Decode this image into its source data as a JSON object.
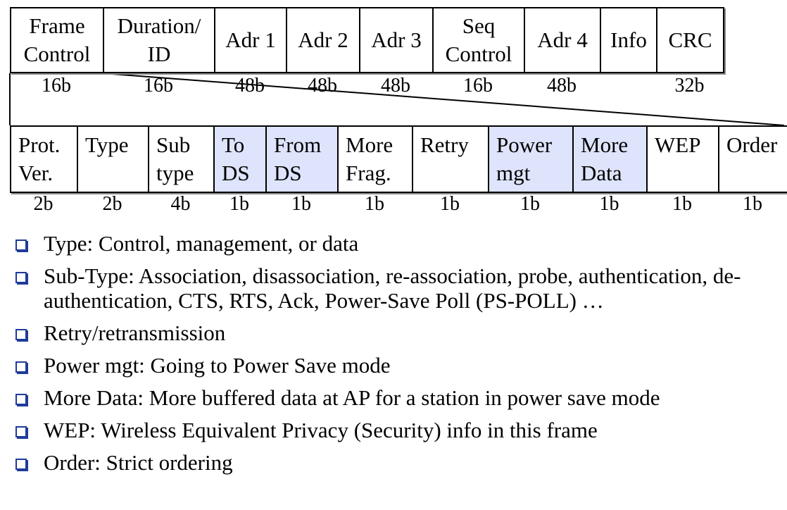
{
  "frame_fields": [
    {
      "label": "Frame\nControl",
      "size": "16b"
    },
    {
      "label": "Duration/\nID",
      "size": "16b"
    },
    {
      "label": "Adr 1",
      "size": "48b"
    },
    {
      "label": "Adr 2",
      "size": "48b"
    },
    {
      "label": "Adr 3",
      "size": "48b"
    },
    {
      "label": "Seq\nControl",
      "size": "16b"
    },
    {
      "label": "Adr 4",
      "size": "48b"
    },
    {
      "label": "Info",
      "size": ""
    },
    {
      "label": "CRC",
      "size": "32b"
    }
  ],
  "control_fields": [
    {
      "label": "Prot.\nVer.",
      "size": "2b",
      "highlight": false
    },
    {
      "label": "Type",
      "size": "2b",
      "highlight": false
    },
    {
      "label": "Sub\ntype",
      "size": "4b",
      "highlight": false
    },
    {
      "label": "To\nDS",
      "size": "1b",
      "highlight": true
    },
    {
      "label": "From\nDS",
      "size": "1b",
      "highlight": true
    },
    {
      "label": "More\nFrag.",
      "size": "1b",
      "highlight": false
    },
    {
      "label": "Retry",
      "size": "1b",
      "highlight": false
    },
    {
      "label": "Power\nmgt",
      "size": "1b",
      "highlight": true
    },
    {
      "label": "More\nData",
      "size": "1b",
      "highlight": true
    },
    {
      "label": "WEP",
      "size": "1b",
      "highlight": false
    },
    {
      "label": "Order",
      "size": "1b",
      "highlight": false
    }
  ],
  "highlight_color": "#dde4fb",
  "bullet_color": "#1f3b9a",
  "bullets": [
    "Type: Control, management, or data",
    "Sub-Type: Association, disassociation, re-association, probe, authentication, de-authentication, CTS, RTS, Ack, Power-Save Poll (PS-POLL) …",
    "Retry/retransmission",
    "Power mgt: Going to Power Save mode",
    "More Data: More buffered data at AP for a station in power save mode",
    "WEP: Wireless Equivalent Privacy (Security) info in this frame",
    "Order: Strict ordering"
  ]
}
